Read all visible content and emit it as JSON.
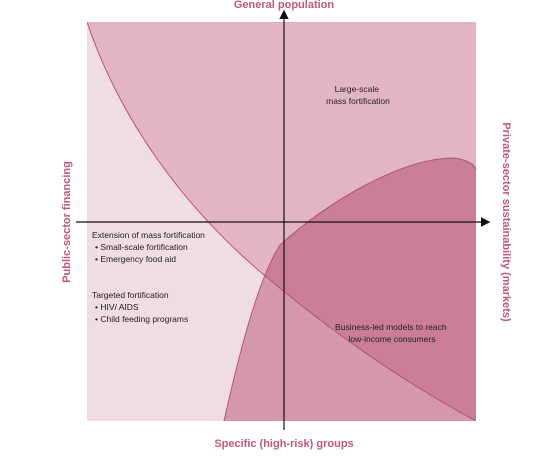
{
  "colors": {
    "quadrant_bg": "#e3b5c3",
    "left_region": "#f0dce3",
    "market_region": "#d497ac",
    "overlap_region": "#c97d98",
    "stroke": "#b05574",
    "axis": "#111111",
    "title_text": "#c0587a"
  },
  "axes": {
    "top": "General population",
    "bottom": "Specific (high-risk) groups",
    "left": "Public-sector financing",
    "right": "Private-sector sustainability (markets)"
  },
  "regions": {
    "large_scale": [
      "Large-scale",
      "mass fortification"
    ],
    "extension": {
      "heading": "Extension of mass fortification",
      "items": [
        "• Small-scale fortification",
        "• Emergency food aid"
      ]
    },
    "targeted": {
      "heading": "Targeted fortification",
      "items": [
        "• HIV/ AIDS",
        "• Child feeding programs"
      ]
    },
    "business": [
      "Business-led models to reach",
      "low-income consumers"
    ]
  }
}
